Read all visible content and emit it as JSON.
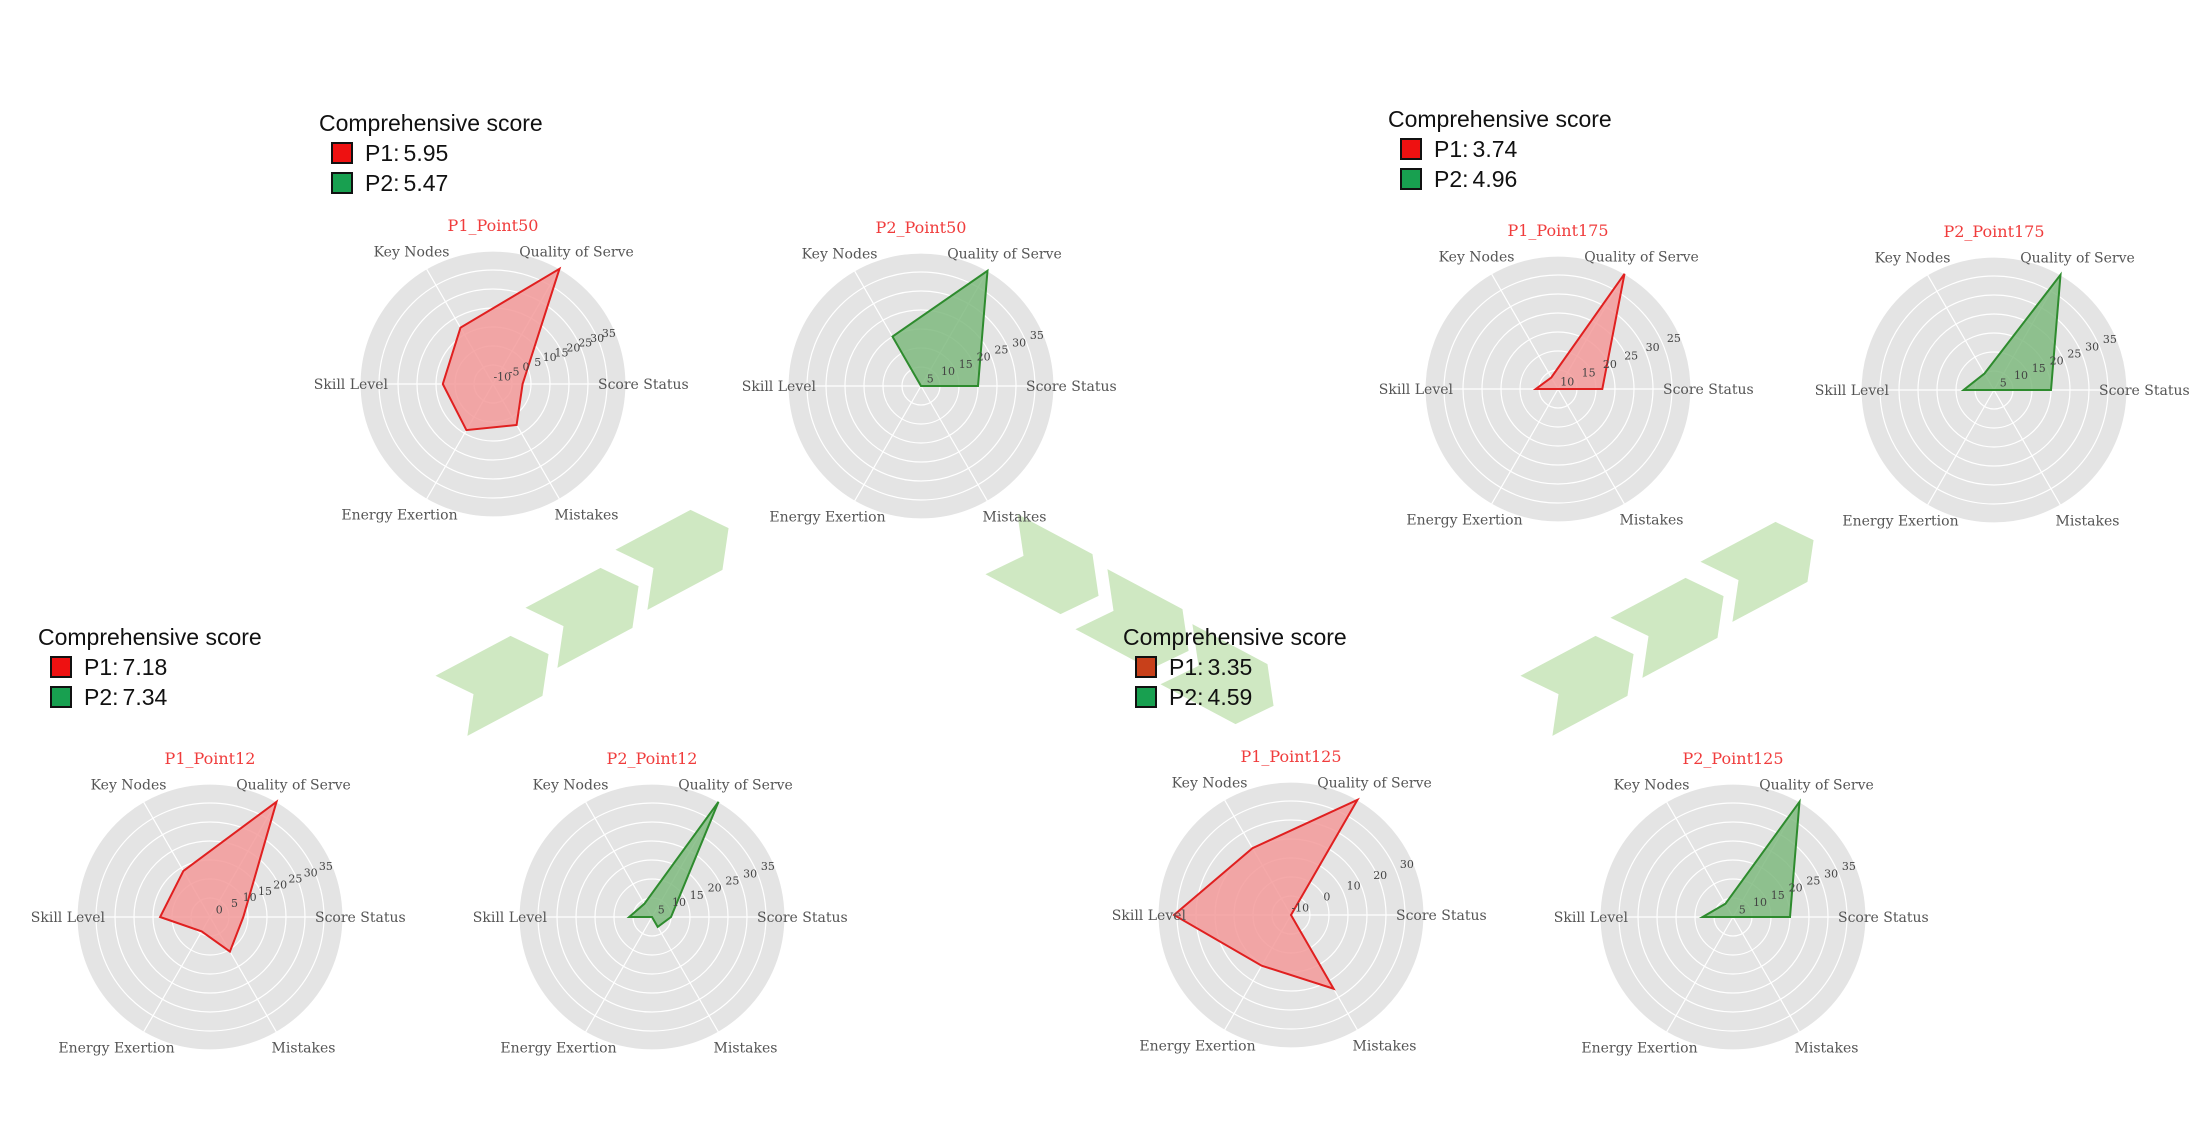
{
  "axes": [
    "Quality of Serve",
    "Score Status",
    "Mistakes",
    "Energy Exertion",
    "Skill Level",
    "Key Nodes"
  ],
  "colors": {
    "p1_fill": "#f39a9a",
    "p1_line": "#e02020",
    "p1_swatch": "#ee1111",
    "p1_swatch_alt": "#c8401a",
    "p2_fill": "#7fba7f",
    "p2_line": "#2e8b2e",
    "p2_swatch": "#18a050",
    "title": "#f03c3c",
    "radar_bg": "#e4e4e4",
    "grid": "#ffffff",
    "arrow": "#cfe8c2"
  },
  "legends": [
    {
      "title": "Comprehensive score",
      "p1_label": "P1:",
      "p1_value": "7.18",
      "p2_label": "P2:",
      "p2_value": "7.34"
    },
    {
      "title": "Comprehensive score",
      "p1_label": "P1:",
      "p1_value": "5.95",
      "p2_label": "P2:",
      "p2_value": "5.47"
    },
    {
      "title": "Comprehensive score",
      "p1_label": "P1:",
      "p1_value": "3.35",
      "p2_label": "P2:",
      "p2_value": "4.59"
    },
    {
      "title": "Comprehensive score",
      "p1_label": "P1:",
      "p1_value": "3.74",
      "p2_label": "P2:",
      "p2_value": "4.96"
    }
  ],
  "chart_data": [
    {
      "type": "radar",
      "title": "P1_Point12",
      "series": "P1",
      "ticks": [
        "0",
        "5",
        "10",
        "15",
        "20",
        "25",
        "30",
        "35"
      ],
      "rmin": -5,
      "rmax": 35,
      "values": [
        35,
        5,
        7,
        0,
        10,
        11
      ]
    },
    {
      "type": "radar",
      "title": "P2_Point12",
      "series": "P2",
      "ticks": [
        "5",
        "10",
        "15",
        "20",
        "25",
        "30",
        "35"
      ],
      "rmin": 0,
      "rmax": 35,
      "values": [
        35,
        5,
        3,
        0,
        6,
        4
      ]
    },
    {
      "type": "radar",
      "title": "P1_Point50",
      "series": "P1",
      "ticks": [
        "-10",
        "-5",
        "0",
        "5",
        "10",
        "15",
        "20",
        "25",
        "30",
        "35"
      ],
      "rmin": -10,
      "rmax": 35,
      "values": [
        35,
        0,
        6,
        8,
        7,
        12
      ]
    },
    {
      "type": "radar",
      "title": "P2_Point50",
      "series": "P2",
      "ticks": [
        "5",
        "10",
        "15",
        "20",
        "25",
        "30",
        "35"
      ],
      "rmin": 0,
      "rmax": 35,
      "values": [
        35,
        15,
        0,
        0,
        0,
        15
      ]
    },
    {
      "type": "radar",
      "title": "P1_Point125",
      "series": "P1",
      "ticks": [
        "-10",
        "0",
        "10",
        "20",
        "30"
      ],
      "rmin": -20,
      "rmax": 30,
      "values": [
        30,
        -20,
        12,
        2,
        24,
        9
      ]
    },
    {
      "type": "radar",
      "title": "P2_Point125",
      "series": "P2",
      "ticks": [
        "5",
        "10",
        "15",
        "20",
        "25",
        "30",
        "35"
      ],
      "rmin": 0,
      "rmax": 35,
      "values": [
        35,
        15,
        0,
        0,
        8,
        4
      ]
    },
    {
      "type": "radar",
      "title": "P1_Point175",
      "series": "P1",
      "ticks": [
        "10",
        "15",
        "20",
        "25",
        "30",
        "25"
      ],
      "rmin": 5,
      "rmax": 35,
      "values": [
        35,
        15,
        5,
        5,
        10,
        8
      ]
    },
    {
      "type": "radar",
      "title": "P2_Point175",
      "series": "P2",
      "ticks": [
        "5",
        "10",
        "15",
        "20",
        "25",
        "30",
        "35"
      ],
      "rmin": 0,
      "rmax": 35,
      "values": [
        35,
        15,
        0,
        0,
        8,
        5
      ]
    }
  ]
}
